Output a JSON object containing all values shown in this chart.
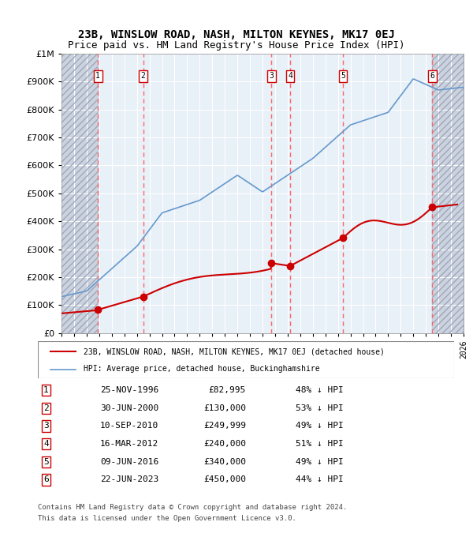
{
  "title": "23B, WINSLOW ROAD, NASH, MILTON KEYNES, MK17 0EJ",
  "subtitle": "Price paid vs. HM Land Registry's House Price Index (HPI)",
  "legend_line1": "23B, WINSLOW ROAD, NASH, MILTON KEYNES, MK17 0EJ (detached house)",
  "legend_line2": "HPI: Average price, detached house, Buckinghamshire",
  "footer_line1": "Contains HM Land Registry data © Crown copyright and database right 2024.",
  "footer_line2": "This data is licensed under the Open Government Licence v3.0.",
  "sales": [
    {
      "num": 1,
      "date": "25-NOV-1996",
      "price": 82995,
      "year": 1996.9
    },
    {
      "num": 2,
      "date": "30-JUN-2000",
      "price": 130000,
      "year": 2000.5
    },
    {
      "num": 3,
      "date": "10-SEP-2010",
      "price": 249999,
      "year": 2010.7
    },
    {
      "num": 4,
      "date": "16-MAR-2012",
      "price": 240000,
      "year": 2012.2
    },
    {
      "num": 5,
      "date": "09-JUN-2016",
      "price": 340000,
      "year": 2016.4
    },
    {
      "num": 6,
      "date": "22-JUN-2023",
      "price": 450000,
      "year": 2023.5
    }
  ],
  "table_rows": [
    {
      "num": 1,
      "date": "25-NOV-1996",
      "price": "£82,995",
      "hpi": "48% ↓ HPI"
    },
    {
      "num": 2,
      "date": "30-JUN-2000",
      "price": "£130,000",
      "hpi": "53% ↓ HPI"
    },
    {
      "num": 3,
      "date": "10-SEP-2010",
      "price": "£249,999",
      "hpi": "49% ↓ HPI"
    },
    {
      "num": 4,
      "date": "16-MAR-2012",
      "price": "£240,000",
      "hpi": "51% ↓ HPI"
    },
    {
      "num": 5,
      "date": "09-JUN-2016",
      "price": "£340,000",
      "hpi": "49% ↓ HPI"
    },
    {
      "num": 6,
      "date": "22-JUN-2023",
      "price": "£450,000",
      "hpi": "44% ↓ HPI"
    }
  ],
  "xmin": 1994,
  "xmax": 2026,
  "ymin": 0,
  "ymax": 1000000,
  "hatch_left_xmax": 1996.9,
  "hatch_right_xmin": 2023.5,
  "background_color": "#ffffff",
  "plot_bg_color": "#e8f0f8",
  "hatch_color": "#c0c8d8",
  "red_line_color": "#cc0000",
  "blue_line_color": "#6699cc",
  "marker_color": "#cc0000",
  "vline_color": "#ff6666",
  "box_edge_color": "#cc0000",
  "grid_color": "#ffffff"
}
